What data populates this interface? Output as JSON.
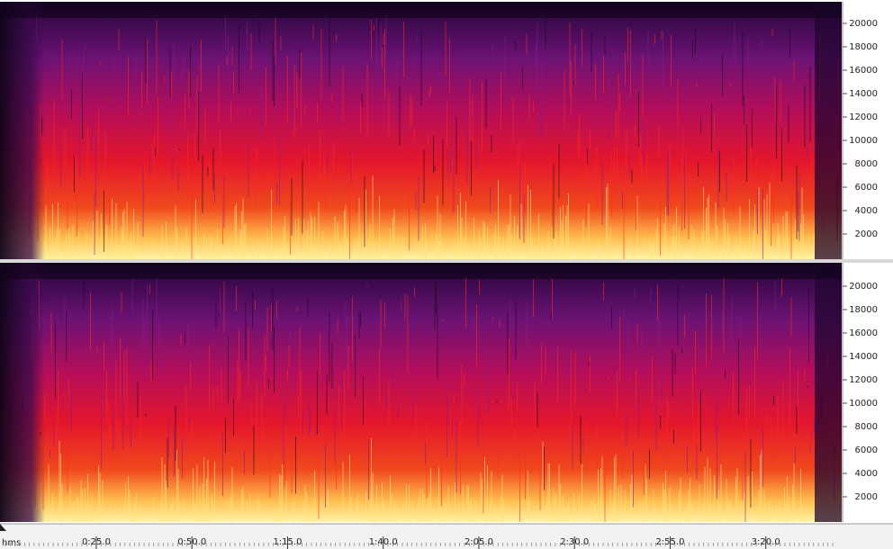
{
  "frequency_axis": {
    "ticks": [
      2000,
      4000,
      6000,
      8000,
      10000,
      12000,
      14000,
      16000,
      18000,
      20000
    ]
  },
  "time_ruler": {
    "unit": "hms",
    "ticks": [
      {
        "value": 25,
        "label": "0:25.0"
      },
      {
        "value": 50,
        "label": "0:50.0"
      },
      {
        "value": 75,
        "label": "1:15.0"
      },
      {
        "value": 100,
        "label": "1:40.0"
      },
      {
        "value": 125,
        "label": "2:05.0"
      },
      {
        "value": 150,
        "label": "2:30.0"
      },
      {
        "value": 175,
        "label": "2:55.0"
      },
      {
        "value": 200,
        "label": "3:20.0"
      }
    ]
  }
}
